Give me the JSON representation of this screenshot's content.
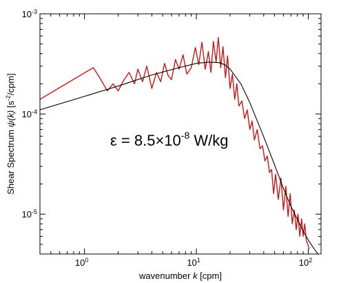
{
  "chart_data": {
    "type": "line",
    "xlabel": {
      "pre": "wavenumber ",
      "var": "k",
      "post": " [cpm]"
    },
    "ylabel": {
      "pre": "Shear Spectrum ",
      "var": "ψ(k)",
      "mid": " [s",
      "sup": "-2",
      "post": "/cpm]"
    },
    "x_scale": "log",
    "y_scale": "log",
    "xlim": [
      0.4,
      130
    ],
    "ylim": [
      4e-06,
      0.001
    ],
    "x_tick_labels": [
      {
        "base": "10",
        "exp": "0",
        "value": 1
      },
      {
        "base": "10",
        "exp": "1",
        "value": 10
      },
      {
        "base": "10",
        "exp": "2",
        "value": 100
      }
    ],
    "y_tick_labels": [
      {
        "base": "10",
        "exp": "-3",
        "value": 0.001
      },
      {
        "base": "10",
        "exp": "-4",
        "value": 0.0001
      },
      {
        "base": "10",
        "exp": "-5",
        "value": 1e-05
      }
    ],
    "annotation": {
      "pre": "ε = 8.5×10",
      "sup": "-8",
      "post": " W/kg"
    },
    "series": [
      {
        "color": "#cc1414",
        "x": [
          0.4,
          1.2,
          1.4,
          1.6,
          1.8,
          2.0,
          2.2,
          2.5,
          2.8,
          3.0,
          3.3,
          3.6,
          4.0,
          4.4,
          4.8,
          5.2,
          5.6,
          6.0,
          6.5,
          7.0,
          7.6,
          8.2,
          9.0,
          9.8,
          10.5,
          11.2,
          12.0,
          12.8,
          13.5,
          14.2,
          15.0,
          15.7,
          16.5,
          17.3,
          18.2,
          19.0,
          20.0,
          21.0,
          22.0,
          23.0,
          24.0,
          25.5,
          27.0,
          28.5,
          30.0,
          31.5,
          33.0,
          35.0,
          37.0,
          39.0,
          41.0,
          43.0,
          45.0,
          47.0,
          49.0,
          51.0,
          54.0,
          57.0,
          60.0,
          63.0,
          66.0,
          69.0,
          72.0,
          75.0,
          78.0,
          81.0,
          84.0,
          87.0,
          90.0,
          93.0,
          96.0,
          99.0,
          102.0
        ],
        "y": [
          0.00014,
          0.00029,
          0.00022,
          0.00017,
          0.0002,
          0.00017,
          0.00021,
          0.00026,
          0.0002,
          0.00028,
          0.00021,
          0.0003,
          0.00018,
          0.00026,
          0.00021,
          0.00032,
          0.00024,
          0.00022,
          0.00035,
          0.00028,
          0.00039,
          0.00025,
          0.00029,
          0.00046,
          0.00031,
          0.00052,
          0.00028,
          0.00042,
          0.00026,
          0.00053,
          0.00033,
          0.00058,
          0.00029,
          0.00047,
          0.00023,
          0.00038,
          0.00018,
          0.00025,
          0.00014,
          0.0002,
          0.00012,
          0.000135,
          9e-05,
          0.00011,
          7e-05,
          8.5e-05,
          5.5e-05,
          7e-05,
          4.5e-05,
          4.8e-05,
          3.4e-05,
          3.8e-05,
          2.6e-05,
          2.8e-05,
          1.6e-05,
          2.5e-05,
          1.4e-05,
          2.3e-05,
          1.1e-05,
          1.9e-05,
          9.5e-06,
          1.6e-05,
          8e-06,
          1.1e-05,
          7e-06,
          1e-05,
          6e-06,
          9e-06,
          6e-06,
          8e-06,
          5.5e-06,
          5e-06,
          4.5e-06
        ]
      },
      {
        "color": "#000000",
        "x": [
          0.4,
          1.0,
          2.0,
          4.0,
          7.0,
          10.0,
          13.0,
          16.0,
          18.0,
          20.0,
          25.0,
          30.0,
          40.0,
          50.0,
          60.0,
          70.0,
          80.0,
          90.0,
          100.0,
          110.0,
          120.0,
          130.0
        ],
        "y": [
          0.00011,
          0.00015,
          0.00019,
          0.000245,
          0.00029,
          0.00032,
          0.00033,
          0.000325,
          0.00031,
          0.00028,
          0.0002,
          0.00013,
          5.9e-05,
          3.1e-05,
          1.8e-05,
          1.2e-05,
          8.8e-06,
          6.8e-06,
          5.5e-06,
          4.7e-06,
          4.1e-06,
          3.7e-06
        ]
      }
    ]
  }
}
